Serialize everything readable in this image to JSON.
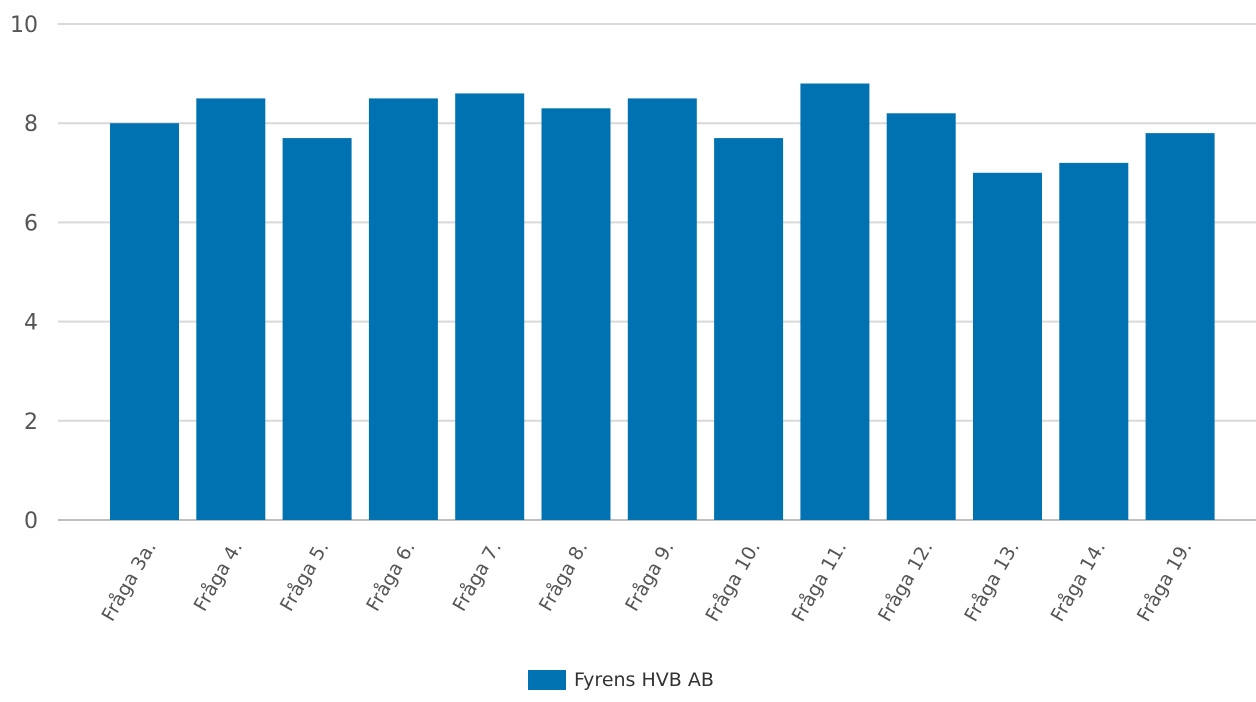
{
  "chart_data": {
    "type": "bar",
    "categories": [
      "Fråga 3a.",
      "Fråga 4.",
      "Fråga 5.",
      "Fråga 6.",
      "Fråga 7.",
      "Fråga 8.",
      "Fråga 9.",
      "Fråga 10.",
      "Fråga 11.",
      "Fråga 12.",
      "Fråga 13.",
      "Fråga 14.",
      "Fråga 19."
    ],
    "series": [
      {
        "name": "Fyrens HVB AB",
        "values": [
          8.0,
          8.5,
          7.7,
          8.5,
          8.6,
          8.3,
          8.5,
          7.7,
          8.8,
          8.2,
          7.0,
          7.2,
          7.8
        ]
      }
    ],
    "y_ticks": [
      "0",
      "2",
      "4",
      "6",
      "8",
      "10"
    ],
    "ylim": [
      0,
      10
    ],
    "grid": true,
    "legend_position": "bottom-center",
    "colors": {
      "bar": "#0072B2",
      "grid": "#d9d9d9",
      "axis": "#bfbfbf"
    }
  },
  "legend": {
    "label": "Fyrens HVB AB"
  }
}
